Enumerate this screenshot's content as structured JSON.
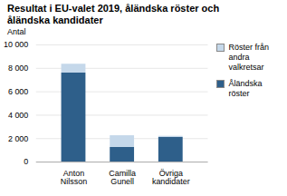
{
  "chart_data": {
    "type": "bar",
    "title": "Resultat i EU-valet 2019, åländska röster och\nåländska kandidater",
    "ylabel": "Antal",
    "categories": [
      "Anton\nNilsson",
      "Camilla\nGunell",
      "Övriga\nkandidater"
    ],
    "series": [
      {
        "name": "Åländska\nröster",
        "color": "#2E5F8A",
        "values": [
          7600,
          1250,
          2100
        ]
      },
      {
        "name": "Röster från\nandra\nvalkretsar",
        "color": "#C5D8EA",
        "values": [
          750,
          1000,
          100
        ]
      }
    ],
    "stacked": true,
    "ylim": [
      0,
      10000
    ],
    "yticks": [
      0,
      {
        "value": 2000,
        "label": "2 000"
      },
      {
        "value": 4000,
        "label": "4 000"
      },
      {
        "value": 6000,
        "label": "6 000"
      },
      {
        "value": 8000,
        "label": "8 000"
      },
      {
        "value": 10000,
        "label": "10 000"
      }
    ],
    "grid": true,
    "legend": "right"
  }
}
